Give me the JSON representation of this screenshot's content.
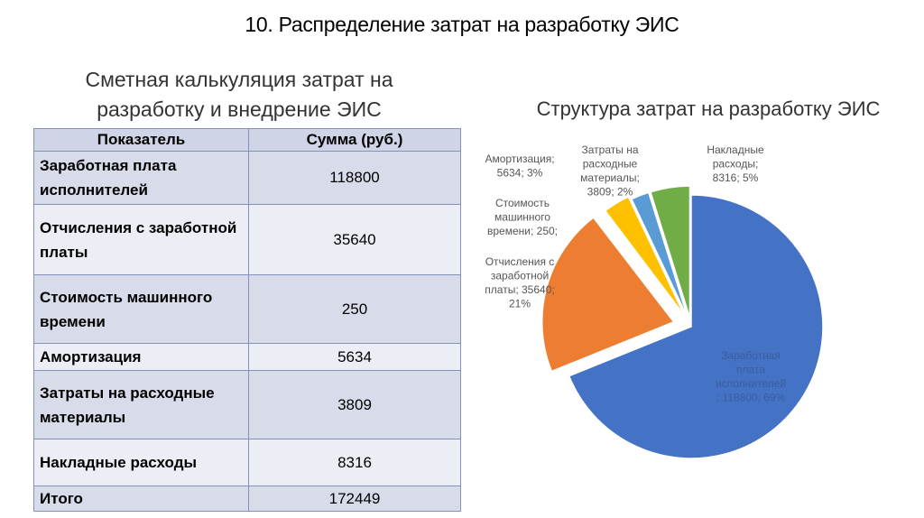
{
  "slide_title": "10. Распределение затрат на разработку ЭИС",
  "table": {
    "title_lines": [
      "Сметная калькуляция затрат на",
      "разработку и внедрение ЭИС"
    ],
    "headers": [
      "Показатель",
      "Сумма (руб.)"
    ],
    "rows": [
      {
        "name": "Заработная плата исполнителей",
        "sum": "118800"
      },
      {
        "name": "Отчисления с заработной платы",
        "sum": "35640"
      },
      {
        "name": "Стоимость машинного времени",
        "sum": "250"
      },
      {
        "name": "Амортизация",
        "sum": "5634"
      },
      {
        "name": "Затраты на расходные материалы",
        "sum": "3809"
      },
      {
        "name": "Накладные расходы",
        "sum": "8316"
      },
      {
        "name": "Итого",
        "sum": "172449"
      }
    ]
  },
  "chart_data": {
    "type": "pie",
    "title": "Структура затрат на разработку ЭИС",
    "slices": [
      {
        "name": "Заработная плата исполнителей",
        "value": 118800,
        "percent": "69%",
        "color": "#4472c4",
        "label_lines": [
          "Заработная",
          "плата",
          "исполнителей",
          "; 118800; 69%"
        ]
      },
      {
        "name": "Отчисления с заработной платы",
        "value": 35640,
        "percent": "21%",
        "color": "#ed7d31",
        "label_lines": [
          "Отчисления с",
          "заработной",
          "платы; 35640;",
          "21%"
        ]
      },
      {
        "name": "Стоимость машинного времени",
        "value": 250,
        "percent": "",
        "color": "#a5a5a5",
        "label_lines": [
          "Стоимость",
          "машинного",
          "времени; 250;"
        ]
      },
      {
        "name": "Амортизация",
        "value": 5634,
        "percent": "3%",
        "color": "#ffc000",
        "label_lines": [
          "Амортизация;",
          "5634; 3%"
        ]
      },
      {
        "name": "Затраты на расходные материалы",
        "value": 3809,
        "percent": "2%",
        "color": "#5b9bd5",
        "label_lines": [
          "Затраты на",
          "расходные",
          "материалы;",
          "3809; 2%"
        ]
      },
      {
        "name": "Накладные расходы",
        "value": 8316,
        "percent": "5%",
        "color": "#70ad47",
        "label_lines": [
          "Накладные",
          "расходы;",
          "8316; 5%"
        ]
      }
    ]
  }
}
